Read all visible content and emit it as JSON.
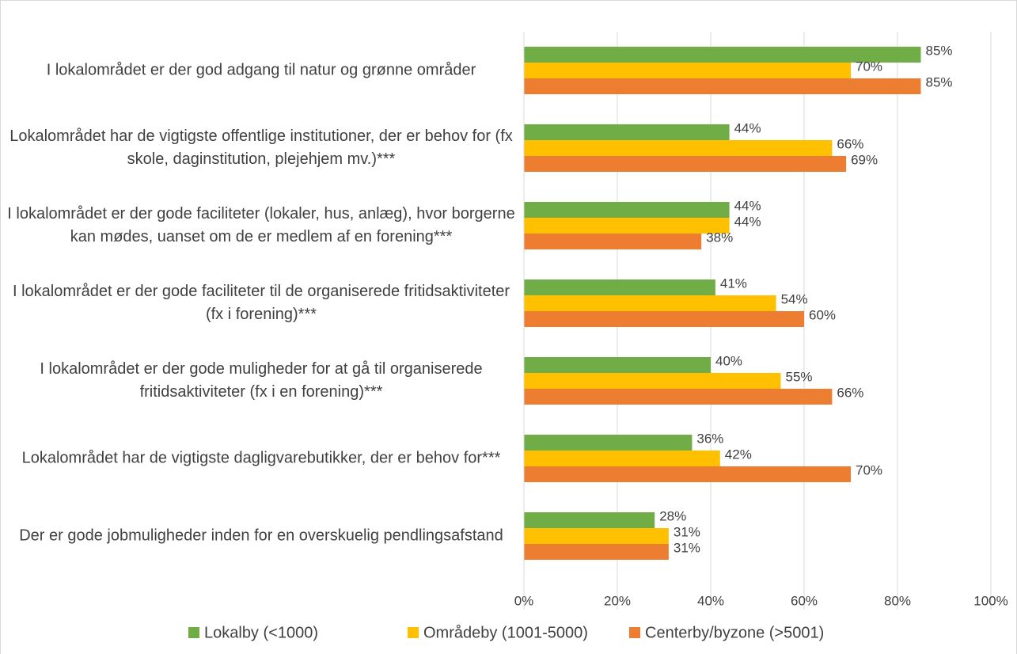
{
  "chart_data": {
    "type": "bar",
    "orientation": "horizontal",
    "categories": [
      "I lokalområdet er der god adgang til natur og grønne områder",
      "Lokalområdet har de vigtigste offentlige institutioner, der er behov for (fx skole, daginstitution, plejehjem mv.)***",
      "I lokalområdet er der gode faciliteter (lokaler, hus, anlæg), hvor borgerne kan mødes, uanset om de er medlem af en forening***",
      "I lokalområdet er der gode faciliteter til de organiserede fritidsaktiviteter (fx i forening)***",
      "I lokalområdet er der gode muligheder for at gå til organiserede fritidsaktiviteter (fx i en forening)***",
      "Lokalområdet har de vigtigste dagligvarebutikker, der er behov for***",
      "Der er gode jobmuligheder inden for en overskuelig pendlingsafstand"
    ],
    "series": [
      {
        "name": "Lokalby (<1000)",
        "color": "#70ad47",
        "values": [
          85,
          44,
          44,
          41,
          40,
          36,
          28
        ],
        "value_labels": [
          "85%",
          "44%",
          "44%",
          "41%",
          "40%",
          "36%",
          "28%"
        ]
      },
      {
        "name": "Områdeby (1001-5000)",
        "color": "#ffc000",
        "values": [
          70,
          66,
          44,
          54,
          55,
          42,
          31
        ],
        "value_labels": [
          "70%",
          "66%",
          "44%",
          "54%",
          "55%",
          "42%",
          "31%"
        ]
      },
      {
        "name": "Centerby/byzone (>5001)",
        "color": "#ed7d31",
        "values": [
          85,
          69,
          38,
          60,
          66,
          70,
          31
        ],
        "value_labels": [
          "85%",
          "69%",
          "38%",
          "60%",
          "66%",
          "70%",
          "31%"
        ]
      }
    ],
    "xlim": [
      0,
      100
    ],
    "xticks": [
      {
        "value": 0,
        "label": "0%"
      },
      {
        "value": 20,
        "label": "20%"
      },
      {
        "value": 40,
        "label": "40%"
      },
      {
        "value": 60,
        "label": "60%"
      },
      {
        "value": 80,
        "label": "80%"
      },
      {
        "value": 100,
        "label": "100%"
      }
    ],
    "grid": true,
    "legend": "bottom"
  }
}
